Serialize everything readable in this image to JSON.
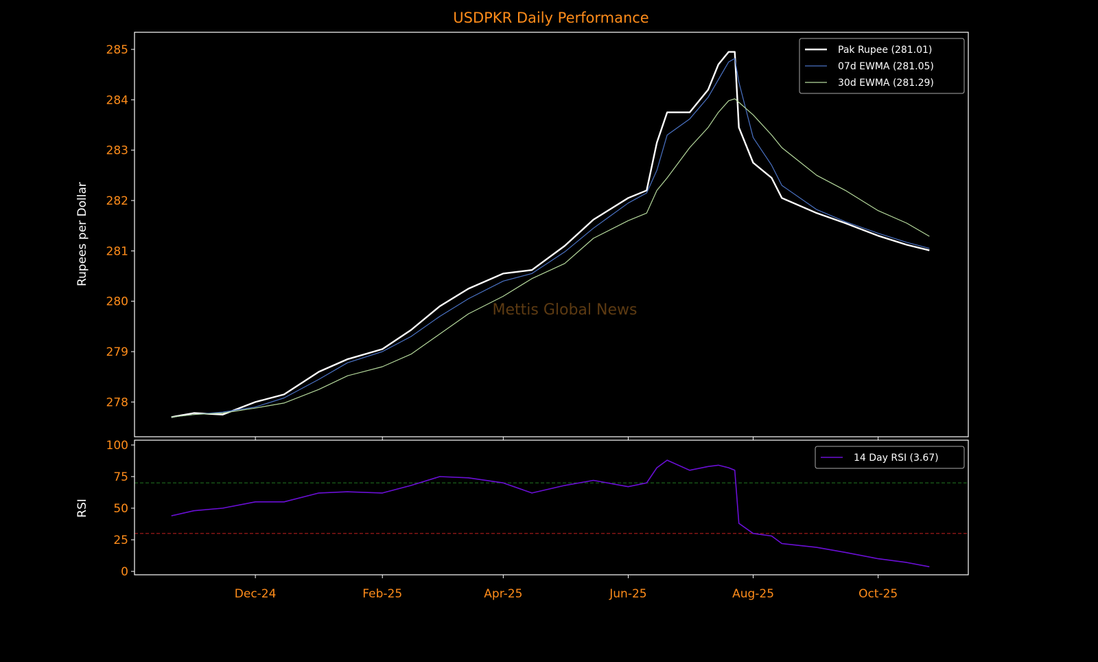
{
  "chart_data": [
    {
      "type": "line",
      "title": "USDPKR Daily Performance",
      "xlabel": "",
      "ylabel": "Rupees per Dollar",
      "xlim": [
        "2024-10-03",
        "2025-11-14"
      ],
      "ylim": [
        277.31,
        285.34
      ],
      "yticks": [
        278,
        279,
        280,
        281,
        282,
        283,
        284,
        285
      ],
      "xticks": [
        {
          "date": "2024-12-01",
          "label": "Dec-24"
        },
        {
          "date": "2025-02-01",
          "label": "Feb-25"
        },
        {
          "date": "2025-04-01",
          "label": "Apr-25"
        },
        {
          "date": "2025-06-01",
          "label": "Jun-25"
        },
        {
          "date": "2025-08-01",
          "label": "Aug-25"
        },
        {
          "date": "2025-10-01",
          "label": "Oct-25"
        }
      ],
      "grid": false,
      "legend": "top-right",
      "watermark": "Mettis Global News",
      "x": [
        "2024-10-21",
        "2024-11-01",
        "2024-11-15",
        "2024-12-01",
        "2024-12-15",
        "2025-01-01",
        "2025-01-15",
        "2025-02-01",
        "2025-02-15",
        "2025-03-01",
        "2025-03-15",
        "2025-04-01",
        "2025-04-15",
        "2025-05-01",
        "2025-05-15",
        "2025-06-01",
        "2025-06-10",
        "2025-06-15",
        "2025-06-20",
        "2025-07-01",
        "2025-07-10",
        "2025-07-15",
        "2025-07-20",
        "2025-07-23",
        "2025-07-25",
        "2025-08-01",
        "2025-08-10",
        "2025-08-15",
        "2025-09-01",
        "2025-09-15",
        "2025-10-01",
        "2025-10-15",
        "2025-10-26"
      ],
      "series": [
        {
          "name": "Pak Rupee (281.01)",
          "color": "#ffffff",
          "values": [
            277.7,
            277.78,
            277.75,
            278.0,
            278.15,
            278.6,
            278.85,
            279.05,
            279.43,
            279.9,
            280.25,
            280.55,
            280.62,
            281.1,
            281.62,
            282.05,
            282.2,
            283.15,
            283.75,
            283.75,
            284.2,
            284.7,
            284.95,
            284.95,
            283.45,
            282.75,
            282.45,
            282.05,
            281.75,
            281.55,
            281.3,
            281.12,
            281.01
          ]
        },
        {
          "name": "07d EWMA (281.05)",
          "color": "#4a72c4",
          "values": [
            277.7,
            277.75,
            277.8,
            277.9,
            278.08,
            278.45,
            278.78,
            279.0,
            279.3,
            279.7,
            280.05,
            280.4,
            280.55,
            280.98,
            281.45,
            281.95,
            282.15,
            282.6,
            283.3,
            283.62,
            284.05,
            284.4,
            284.75,
            284.82,
            284.35,
            283.25,
            282.7,
            282.3,
            281.82,
            281.58,
            281.35,
            281.17,
            281.05
          ]
        },
        {
          "name": "30d EWMA (281.29)",
          "color": "#b5d99c",
          "values": [
            277.7,
            277.75,
            277.78,
            277.88,
            277.98,
            278.25,
            278.52,
            278.7,
            278.95,
            279.35,
            279.75,
            280.1,
            280.45,
            280.75,
            281.25,
            281.6,
            281.75,
            282.2,
            282.45,
            283.05,
            283.45,
            283.75,
            283.98,
            284.02,
            283.95,
            283.7,
            283.3,
            283.05,
            282.5,
            282.2,
            281.8,
            281.55,
            281.29
          ]
        }
      ]
    },
    {
      "type": "line",
      "ylabel": "RSI",
      "xlim": [
        "2024-10-03",
        "2025-11-14"
      ],
      "ylim": [
        -2.7,
        103.8
      ],
      "yticks": [
        0,
        25,
        50,
        75,
        100
      ],
      "reference_lines": [
        {
          "y": 70,
          "color": "#1f6b1f",
          "style": "dashed"
        },
        {
          "y": 30,
          "color": "#b01c1c",
          "style": "dashed"
        }
      ],
      "legend": "top-right",
      "x": [
        "2024-10-21",
        "2024-11-01",
        "2024-11-15",
        "2024-12-01",
        "2024-12-15",
        "2025-01-01",
        "2025-01-15",
        "2025-02-01",
        "2025-02-15",
        "2025-03-01",
        "2025-03-15",
        "2025-04-01",
        "2025-04-15",
        "2025-05-01",
        "2025-05-15",
        "2025-06-01",
        "2025-06-10",
        "2025-06-15",
        "2025-06-20",
        "2025-07-01",
        "2025-07-10",
        "2025-07-15",
        "2025-07-20",
        "2025-07-23",
        "2025-07-25",
        "2025-08-01",
        "2025-08-10",
        "2025-08-15",
        "2025-09-01",
        "2025-09-15",
        "2025-10-01",
        "2025-10-15",
        "2025-10-26"
      ],
      "series": [
        {
          "name": "14 Day RSI (3.67)",
          "color": "#6a0fd6",
          "values": [
            44,
            48,
            50,
            55,
            55,
            62,
            63,
            62,
            68,
            75,
            74,
            70,
            62,
            68,
            72,
            67,
            70,
            82,
            88,
            80,
            83,
            84,
            82,
            80,
            38,
            30,
            28,
            22,
            19,
            15,
            10,
            7,
            3.67
          ]
        }
      ]
    }
  ],
  "colors": {
    "tick_label": "#ff8c1a",
    "title": "#ff8c1a",
    "axis_label": "#ffffff",
    "background": "#000000",
    "watermark": "#5c3a12"
  }
}
